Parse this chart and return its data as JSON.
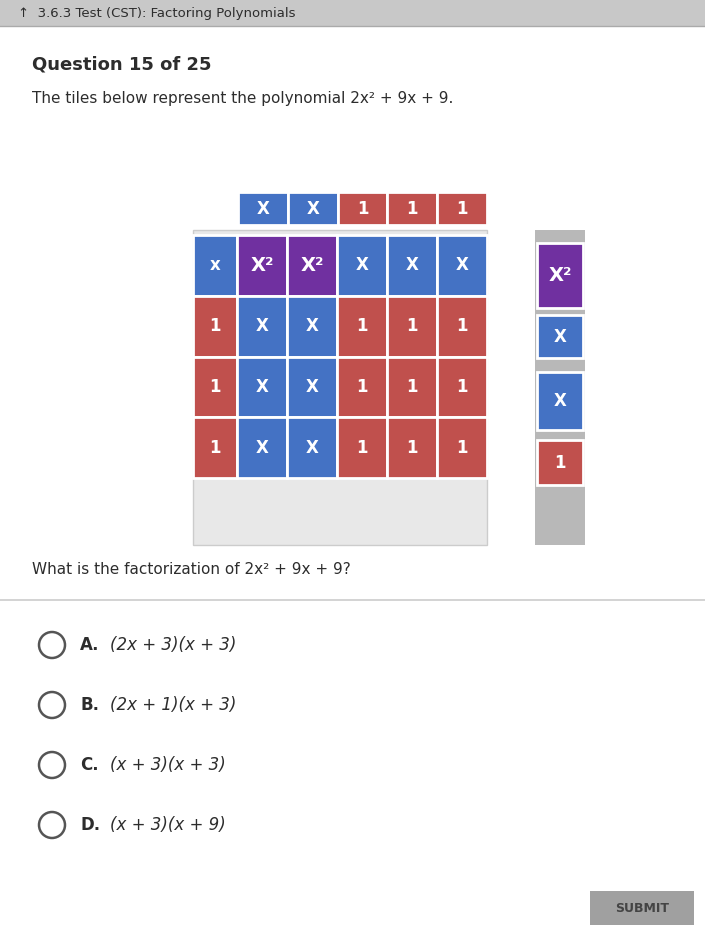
{
  "bg_color": "#d0d0d0",
  "title_bar_text": "↑  3.6.3 Test (CST): Factoring Polynomials",
  "question_text": "Question 15 of 25",
  "problem_text": "The tiles below represent the polynomial 2x² + 9x + 9.",
  "question2_text": "What is the factorization of 2x² + 9x + 9?",
  "submit_text": "SUBMIT",
  "blue_color": "#4472C4",
  "purple_color": "#7030A0",
  "red_color": "#C0504D",
  "white_text": "#FFFFFF",
  "dark_text": "#2d2d2d",
  "spare_bar_color": "#b0b0b0",
  "outer_box_color": "#e0e0e0",
  "inner_box_color": "#d8e8f0"
}
